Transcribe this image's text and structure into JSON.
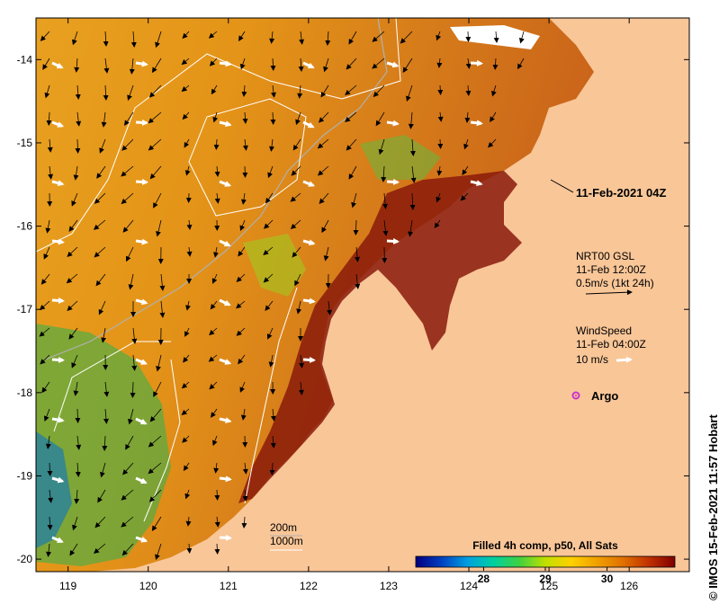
{
  "map": {
    "lon_range": [
      118.6,
      126.75
    ],
    "lat_range": [
      -20.15,
      -13.5
    ],
    "x_ticks": [
      "119",
      "120",
      "121",
      "122",
      "123",
      "124",
      "125",
      "126"
    ],
    "y_ticks": [
      "-14",
      "-15",
      "-16",
      "-17",
      "-18",
      "-19",
      "-20"
    ],
    "colors": {
      "land": "#f9c698",
      "coast_dark": "#8a1a0a",
      "sea_mid": "#e39a1c",
      "current_arrow": "#000000",
      "wind_arrow": "#ffffff",
      "argo": "#cc33cc"
    }
  },
  "annotations": {
    "date_label": "11-Feb-2021 04Z",
    "current": {
      "line1": "NRT00 GSL",
      "line2": "11-Feb 12:00Z",
      "line3": "0.5m/s (1kt 24h)"
    },
    "wind": {
      "line1": "WindSpeed",
      "line2": "11-Feb 04:00Z",
      "line3": "10 m/s"
    },
    "argo_label": "Argo",
    "isobaths": {
      "line1": "200m",
      "line2": "1000m"
    },
    "credit": "© IMOS 15-Feb-2021 11:57 Hobart"
  },
  "colorbar": {
    "title": "Filled 4h comp, p50, All Sats",
    "tick_labels": [
      "28",
      "29",
      "30"
    ],
    "tick_values": [
      28,
      29,
      30
    ],
    "range": [
      26.9,
      31.1
    ],
    "stops": [
      "#00007f",
      "#0040c0",
      "#00a0e0",
      "#00d0a0",
      "#40d040",
      "#c0e000",
      "#ffd000",
      "#f0a000",
      "#e07000",
      "#c03000",
      "#800000"
    ]
  }
}
